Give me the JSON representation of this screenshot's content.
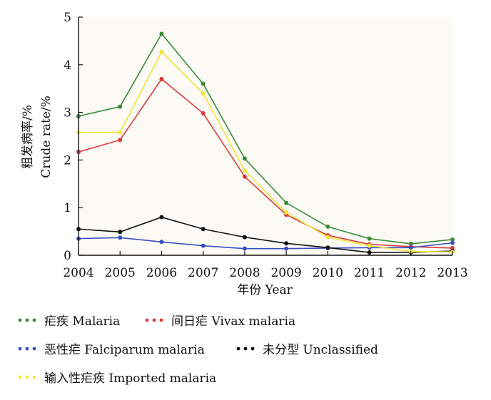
{
  "chart_data": {
    "type": "line",
    "title": "",
    "xlabel": "年份 Year",
    "ylabel_lines": [
      "粗发病率/%",
      "Crude  rate/%"
    ],
    "x": [
      2004,
      2005,
      2006,
      2007,
      2008,
      2009,
      2010,
      2011,
      2012,
      2013
    ],
    "xlim": [
      2004,
      2013
    ],
    "ylim": [
      0,
      5
    ],
    "yticks": [
      0,
      1,
      2,
      3,
      4,
      5
    ],
    "grid": false,
    "legend_position": "bottom",
    "series": [
      {
        "name": "疟疾 Malaria",
        "color": "#3a8a3a",
        "values": [
          2.92,
          3.12,
          4.65,
          3.6,
          2.03,
          1.1,
          0.6,
          0.35,
          0.24,
          0.33
        ]
      },
      {
        "name": "间日疟 Vivax malaria",
        "color": "#d93b3b",
        "values": [
          2.17,
          2.42,
          3.7,
          2.98,
          1.65,
          0.85,
          0.42,
          0.23,
          0.18,
          0.15
        ]
      },
      {
        "name": "恶性疟 Falciparum malaria",
        "color": "#3a4fc0",
        "values": [
          0.35,
          0.37,
          0.28,
          0.2,
          0.14,
          0.14,
          0.15,
          0.16,
          0.16,
          0.26
        ]
      },
      {
        "name": "未分型 Unclassified",
        "color": "#111111",
        "values": [
          0.55,
          0.49,
          0.8,
          0.55,
          0.38,
          0.25,
          0.16,
          0.06,
          0.06,
          0.09
        ]
      },
      {
        "name": "输入性疟疾 Imported malaria",
        "color": "#f0e63a",
        "values": [
          2.58,
          2.58,
          4.27,
          3.4,
          1.78,
          0.9,
          0.38,
          0.2,
          0.08,
          0.07
        ]
      }
    ]
  }
}
